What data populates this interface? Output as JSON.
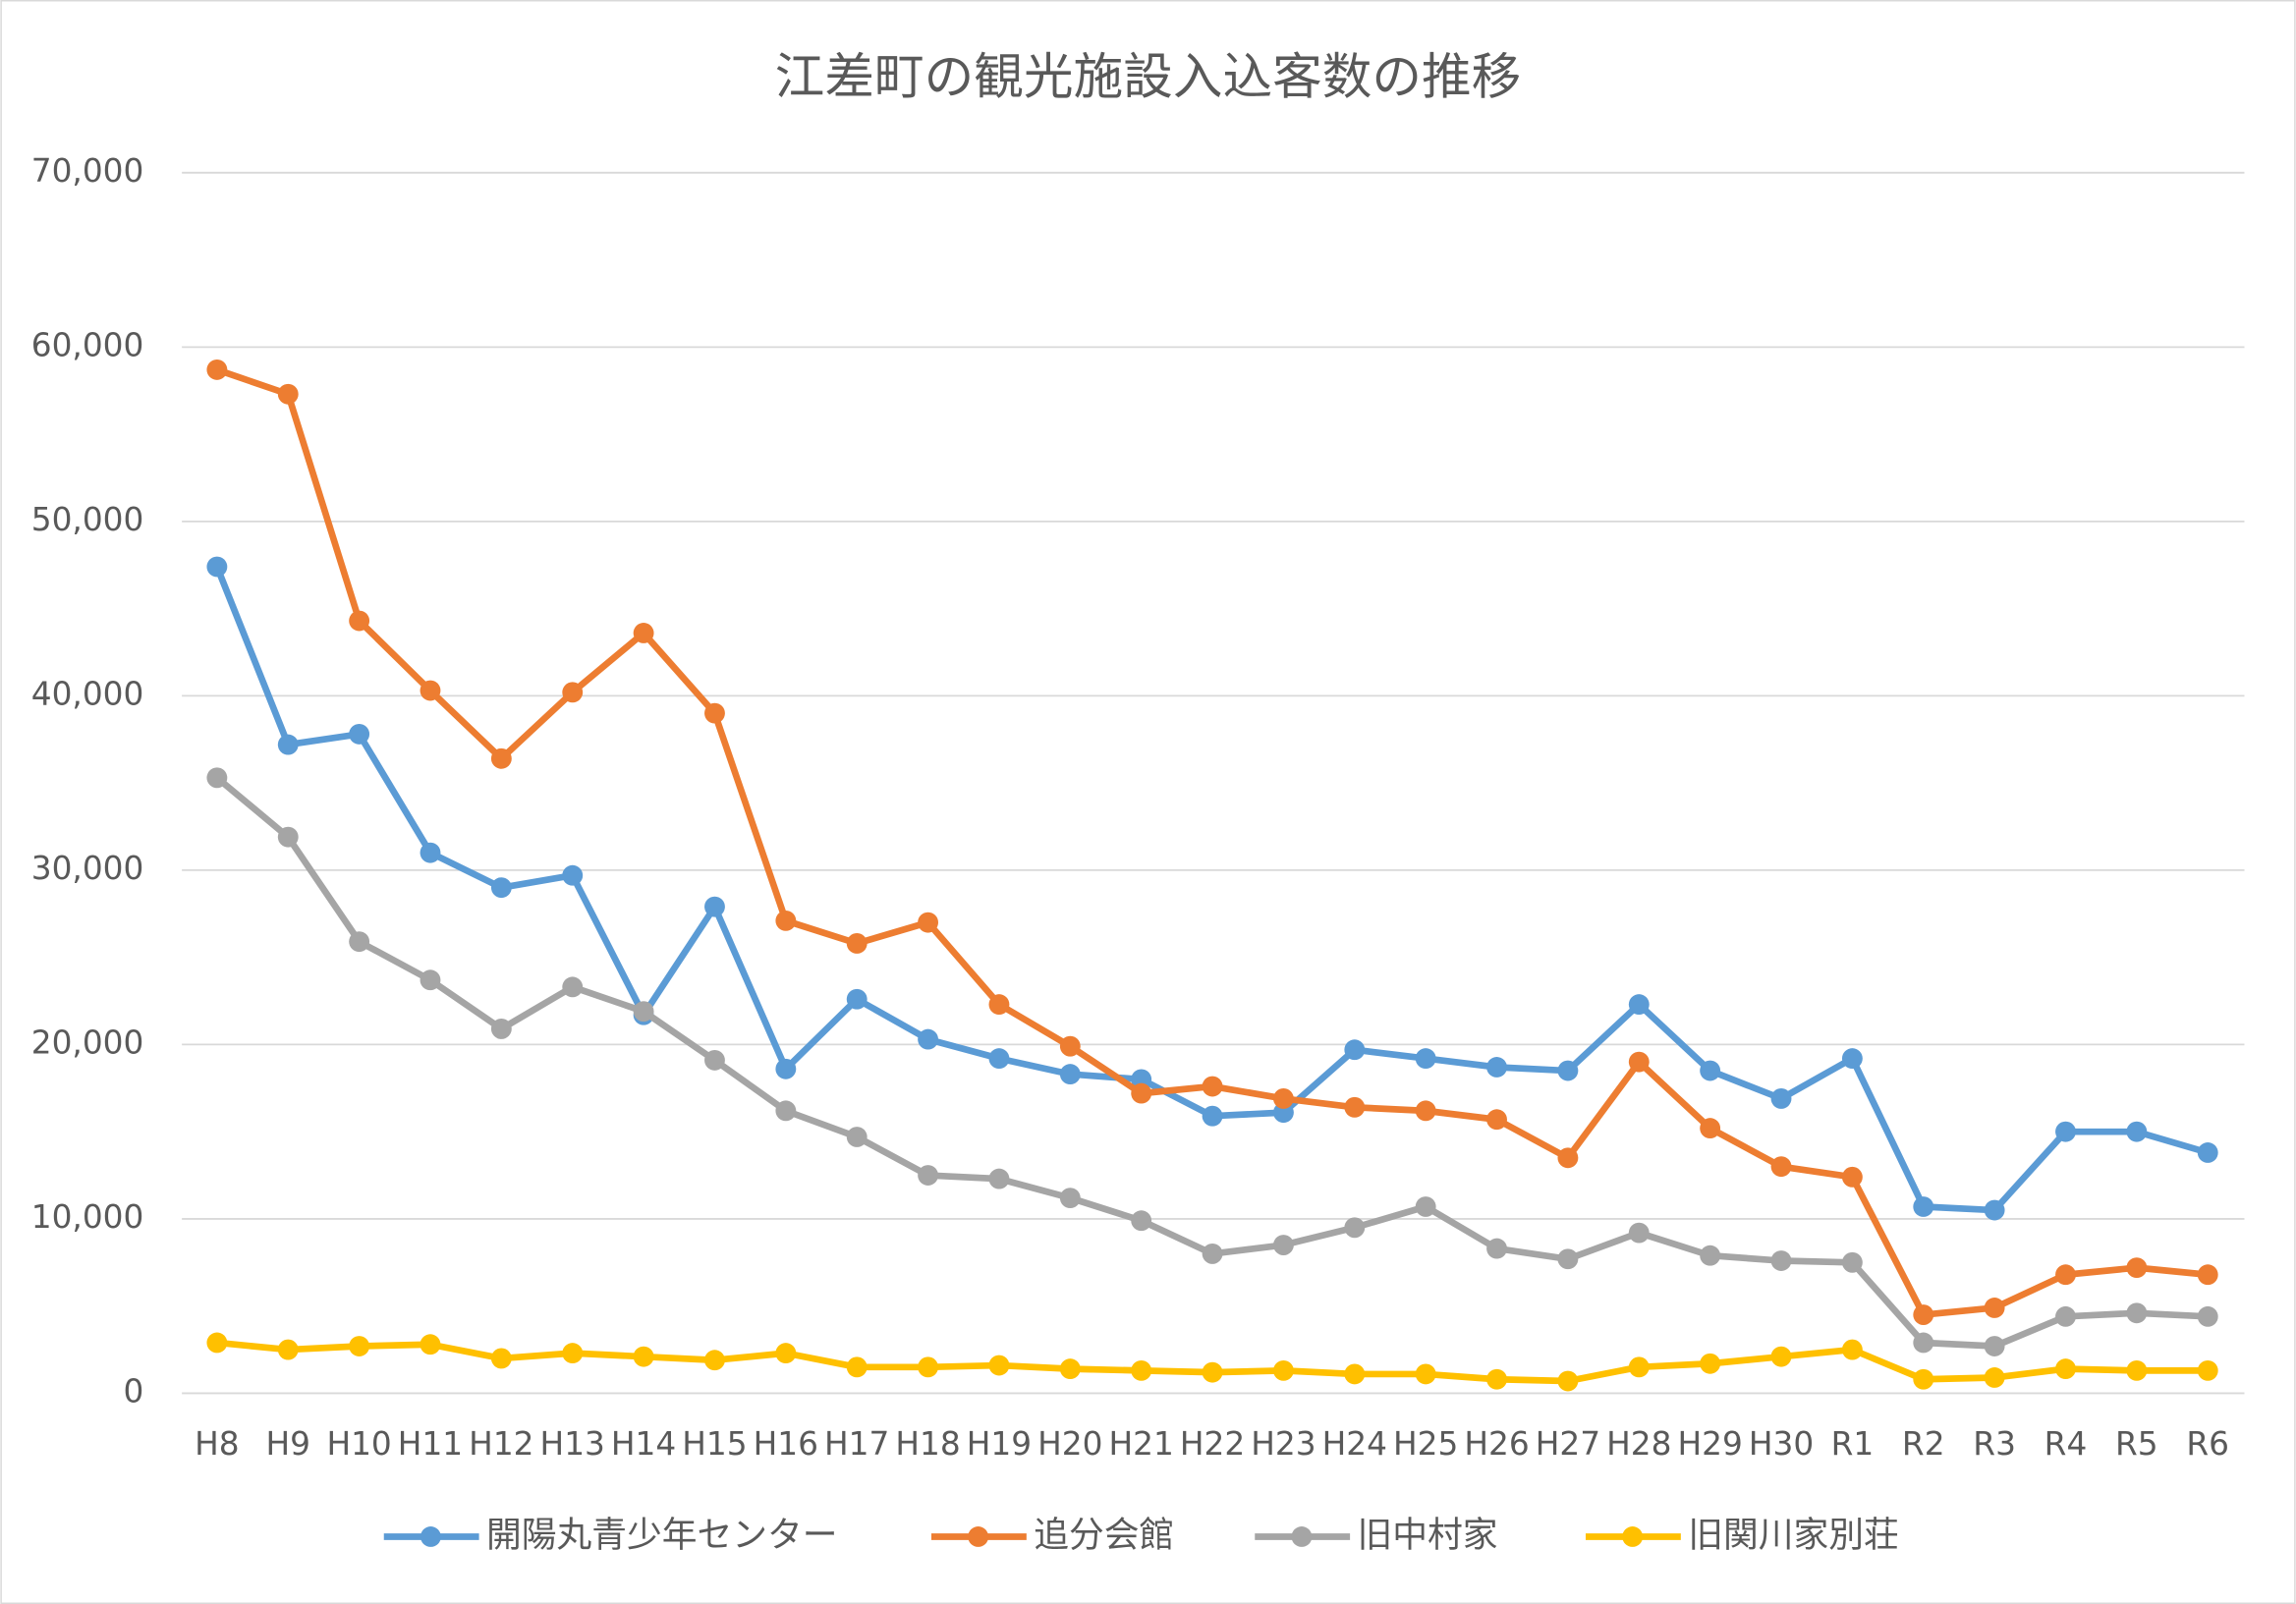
{
  "chart_data": {
    "type": "line",
    "title": "江差町の観光施設入込客数の推移",
    "categories": [
      "H8",
      "H9",
      "H10",
      "H11",
      "H12",
      "H13",
      "H14",
      "H15",
      "H16",
      "H17",
      "H18",
      "H19",
      "H20",
      "H21",
      "H22",
      "H23",
      "H24",
      "H25",
      "H26",
      "H27",
      "H28",
      "H29",
      "H30",
      "R1",
      "R2",
      "R3",
      "R4",
      "R5",
      "R6"
    ],
    "series": [
      {
        "name": "開陽丸青少年センター",
        "color": "#5b9bd5",
        "values": [
          47400,
          37200,
          37800,
          31000,
          29000,
          29700,
          21700,
          27900,
          18600,
          22600,
          20300,
          19200,
          18300,
          18000,
          15900,
          16100,
          19700,
          19200,
          18700,
          18500,
          22300,
          18500,
          16900,
          19200,
          10700,
          10500,
          15000,
          15000,
          13800
        ]
      },
      {
        "name": "追分会館",
        "color": "#ed7d31",
        "values": [
          58700,
          57300,
          44300,
          40300,
          36400,
          40200,
          43600,
          39000,
          27100,
          25800,
          27000,
          22300,
          19900,
          17200,
          17600,
          16900,
          16400,
          16200,
          15700,
          13500,
          19000,
          15200,
          13000,
          12400,
          4500,
          4900,
          6800,
          7200,
          6800
        ]
      },
      {
        "name": "旧中村家",
        "color": "#a5a5a5",
        "values": [
          35300,
          31900,
          25900,
          23700,
          20900,
          23300,
          21900,
          19100,
          16200,
          14700,
          12500,
          12300,
          11200,
          9900,
          8000,
          8500,
          9500,
          10700,
          8300,
          7700,
          9200,
          7900,
          7600,
          7500,
          2900,
          2700,
          4400,
          4600,
          4400
        ]
      },
      {
        "name": "旧関川家別荘",
        "color": "#ffc000",
        "values": [
          2900,
          2500,
          2700,
          2800,
          2000,
          2300,
          2100,
          1900,
          2300,
          1500,
          1500,
          1600,
          1400,
          1300,
          1200,
          1300,
          1100,
          1100,
          800,
          700,
          1500,
          1700,
          2100,
          2500,
          800,
          900,
          1400,
          1300,
          1300
        ]
      }
    ],
    "ylim": [
      0,
      70000
    ],
    "yticks": [
      0,
      {
        "value": 10000,
        "label": "10,000"
      },
      {
        "value": 20000,
        "label": "20,000"
      },
      {
        "value": 30000,
        "label": "30,000"
      },
      {
        "value": 40000,
        "label": "40,000"
      },
      {
        "value": 50000,
        "label": "50,000"
      },
      {
        "value": 60000,
        "label": "60,000"
      },
      {
        "value": 70000,
        "label": "70,000"
      }
    ],
    "grid": true,
    "legend": "bottom"
  }
}
